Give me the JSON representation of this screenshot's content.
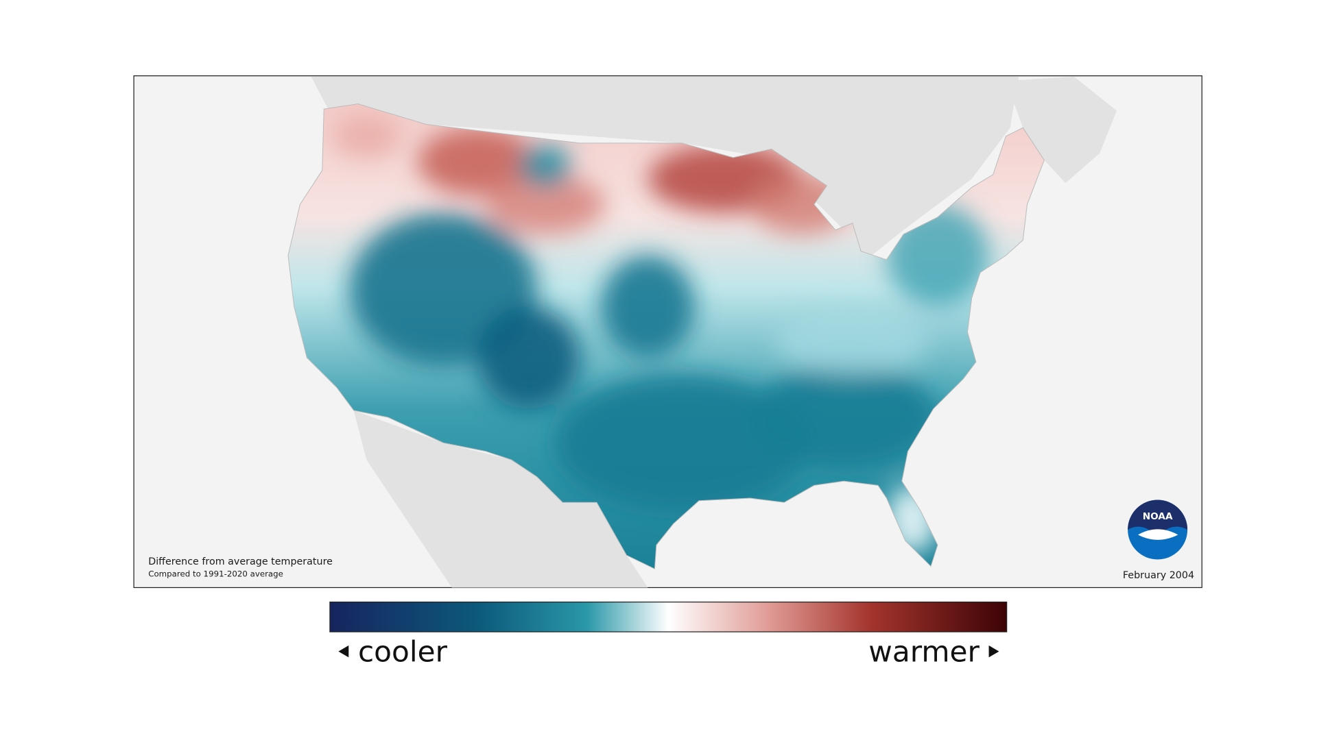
{
  "map": {
    "caption": "Difference from average temperature",
    "subcaption": "Compared to 1991-2020 average",
    "date": "February 2004"
  },
  "legend": {
    "low_label": "cooler",
    "high_label": "warmer"
  },
  "logo": {
    "text": "NOAA"
  }
}
